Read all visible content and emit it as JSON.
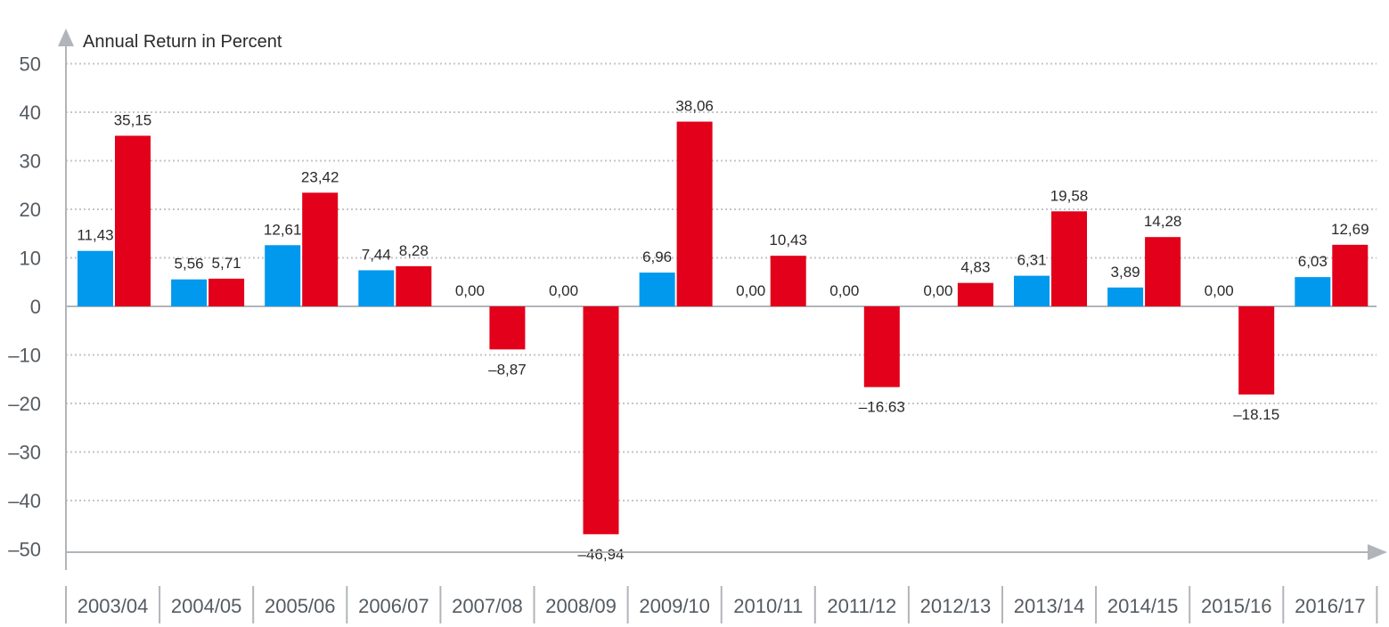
{
  "chart_data": {
    "type": "bar",
    "title": "",
    "ylabel": "Annual Return in Percent",
    "xlabel": "",
    "ylim": [
      -50,
      50
    ],
    "yticks": [
      50,
      40,
      30,
      20,
      10,
      0,
      -10,
      -20,
      -30,
      -40,
      -50
    ],
    "ytick_labels": [
      "50",
      "40",
      "30",
      "20",
      "10",
      "0",
      "–10",
      "–20",
      "–30",
      "–40",
      "–50"
    ],
    "grid": true,
    "categories": [
      "2003/04",
      "2004/05",
      "2005/06",
      "2006/07",
      "2007/08",
      "2008/09",
      "2009/10",
      "2010/11",
      "2011/12",
      "2012/13",
      "2013/14",
      "2014/15",
      "2015/16",
      "2016/17"
    ],
    "series": [
      {
        "color": "#0099ee",
        "values": [
          11.43,
          5.56,
          12.61,
          7.44,
          0.0,
          0.0,
          6.96,
          0.0,
          0.0,
          0.0,
          6.31,
          3.89,
          0.0,
          6.03
        ],
        "labels": [
          "11,43",
          "5,56",
          "12,61",
          "7,44",
          "0,00",
          "0,00",
          "6,96",
          "0,00",
          "0,00",
          "0,00",
          "6,31",
          "3,89",
          "0,00",
          "6,03"
        ]
      },
      {
        "color": "#e2001a",
        "values": [
          35.15,
          5.71,
          23.42,
          8.28,
          -8.87,
          -46.94,
          38.06,
          10.43,
          -16.63,
          4.83,
          19.58,
          14.28,
          -18.15,
          12.69
        ],
        "labels": [
          "35,15",
          "5,71",
          "23,42",
          "8,28",
          "–8,87",
          "–46,94",
          "38,06",
          "10,43",
          "–16.63",
          "4,83",
          "19,58",
          "14,28",
          "–18.15",
          "12,69"
        ]
      }
    ],
    "colors": {
      "axis": "#b1b5b9",
      "grid": "#c3c6c9",
      "text": "#555b61"
    }
  }
}
